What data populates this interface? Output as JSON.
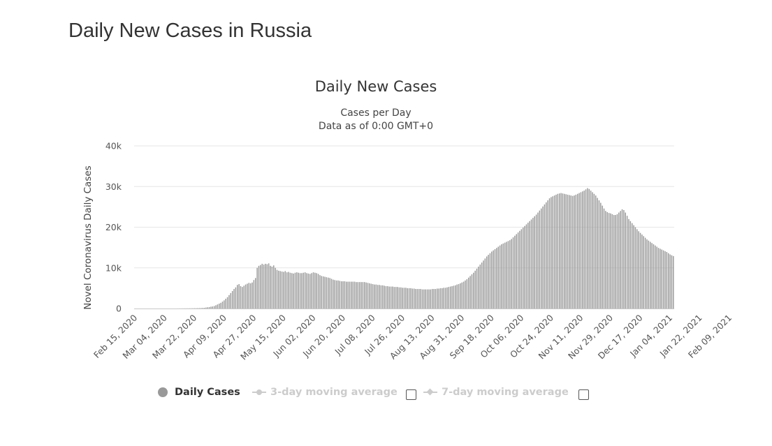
{
  "page": {
    "title": "Daily New Cases in Russia"
  },
  "legend": {
    "daily": "Daily Cases",
    "ma3": "3-day moving average",
    "ma7": "7-day moving average"
  },
  "colors": {
    "bar": "#9a9a9a",
    "grid": "#e6e6e6",
    "legend_off": "#cccccc"
  },
  "chart_data": {
    "type": "bar",
    "title": "Daily New Cases",
    "subtitle": [
      "Cases per Day",
      "Data as of 0:00 GMT+0"
    ],
    "ylabel": "Novel Coronavirus Daily Cases",
    "xlabel": "",
    "ylim": [
      0,
      40000
    ],
    "yticks": [
      0,
      10000,
      20000,
      30000,
      40000
    ],
    "ytick_labels": [
      "0",
      "10k",
      "20k",
      "30k",
      "40k"
    ],
    "x_start": "2020-02-15",
    "x_tick_labels": [
      "Feb 15, 2020",
      "Mar 04, 2020",
      "Mar 22, 2020",
      "Apr 09, 2020",
      "Apr 27, 2020",
      "May 15, 2020",
      "Jun 02, 2020",
      "Jun 20, 2020",
      "Jul 08, 2020",
      "Jul 26, 2020",
      "Aug 13, 2020",
      "Aug 31, 2020",
      "Sep 18, 2020",
      "Oct 06, 2020",
      "Oct 24, 2020",
      "Nov 11, 2020",
      "Nov 29, 2020",
      "Dec 17, 2020",
      "Jan 04, 2021",
      "Jan 22, 2021",
      "Feb 09, 2021"
    ],
    "series": [
      {
        "name": "Daily Cases",
        "values": [
          0,
          0,
          0,
          0,
          0,
          0,
          0,
          0,
          0,
          0,
          0,
          0,
          0,
          0,
          0,
          0,
          0,
          0,
          0,
          0,
          0,
          0,
          0,
          0,
          0,
          0,
          10,
          15,
          20,
          25,
          30,
          35,
          40,
          45,
          50,
          55,
          70,
          75,
          90,
          100,
          110,
          130,
          170,
          240,
          300,
          350,
          450,
          500,
          600,
          800,
          1000,
          1200,
          1400,
          1700,
          2000,
          2400,
          2800,
          3300,
          3800,
          4300,
          4800,
          5200,
          5800,
          6000,
          5500,
          5300,
          5600,
          5900,
          6100,
          6300,
          6200,
          6400,
          7000,
          7500,
          10000,
          10500,
          10700,
          11000,
          10800,
          11000,
          10900,
          11100,
          10500,
          10300,
          10600,
          10000,
          9500,
          9300,
          9200,
          9100,
          9000,
          9200,
          8900,
          9000,
          8800,
          8700,
          8600,
          8800,
          8900,
          8800,
          8700,
          8700,
          8800,
          8900,
          8700,
          8600,
          8500,
          8700,
          8900,
          8800,
          8700,
          8500,
          8200,
          8000,
          7900,
          7800,
          7700,
          7600,
          7500,
          7300,
          7100,
          7000,
          6900,
          6900,
          6800,
          6700,
          6700,
          6700,
          6600,
          6600,
          6600,
          6600,
          6600,
          6600,
          6500,
          6500,
          6500,
          6500,
          6500,
          6500,
          6400,
          6300,
          6200,
          6100,
          6000,
          5900,
          5900,
          5800,
          5800,
          5700,
          5700,
          5600,
          5500,
          5500,
          5400,
          5400,
          5400,
          5300,
          5300,
          5300,
          5200,
          5200,
          5100,
          5100,
          5100,
          5000,
          5000,
          5000,
          4900,
          4900,
          4800,
          4800,
          4800,
          4800,
          4700,
          4700,
          4700,
          4700,
          4700,
          4700,
          4800,
          4800,
          4800,
          4900,
          4900,
          5000,
          5000,
          5100,
          5100,
          5200,
          5300,
          5400,
          5500,
          5600,
          5700,
          5900,
          6000,
          6200,
          6400,
          6600,
          6900,
          7200,
          7600,
          8000,
          8400,
          8800,
          9300,
          9800,
          10300,
          10800,
          11300,
          11800,
          12300,
          12800,
          13200,
          13600,
          14000,
          14300,
          14600,
          14900,
          15200,
          15500,
          15800,
          16000,
          16200,
          16400,
          16600,
          16800,
          17100,
          17500,
          17900,
          18300,
          18700,
          19100,
          19500,
          19900,
          20300,
          20700,
          21100,
          21500,
          21900,
          22300,
          22700,
          23100,
          23600,
          24100,
          24600,
          25100,
          25600,
          26100,
          26600,
          27100,
          27400,
          27600,
          27800,
          28000,
          28200,
          28300,
          28400,
          28300,
          28200,
          28100,
          28000,
          27900,
          27800,
          27700,
          27800,
          28000,
          28200,
          28400,
          28600,
          28800,
          29000,
          29300,
          29600,
          29400,
          29000,
          28600,
          28200,
          27800,
          27200,
          26600,
          26000,
          25300,
          24600,
          24000,
          23700,
          23500,
          23400,
          23200,
          23000,
          23000,
          23200,
          23600,
          24000,
          24400,
          24200,
          23600,
          22800,
          22000,
          21500,
          21000,
          20500,
          20000,
          19500,
          19000,
          18600,
          18200,
          17800,
          17400,
          17000,
          16700,
          16400,
          16100,
          15800,
          15500,
          15200,
          14900,
          14700,
          14500,
          14300,
          14100,
          13900,
          13600,
          13300,
          13100,
          12900
        ]
      }
    ]
  }
}
